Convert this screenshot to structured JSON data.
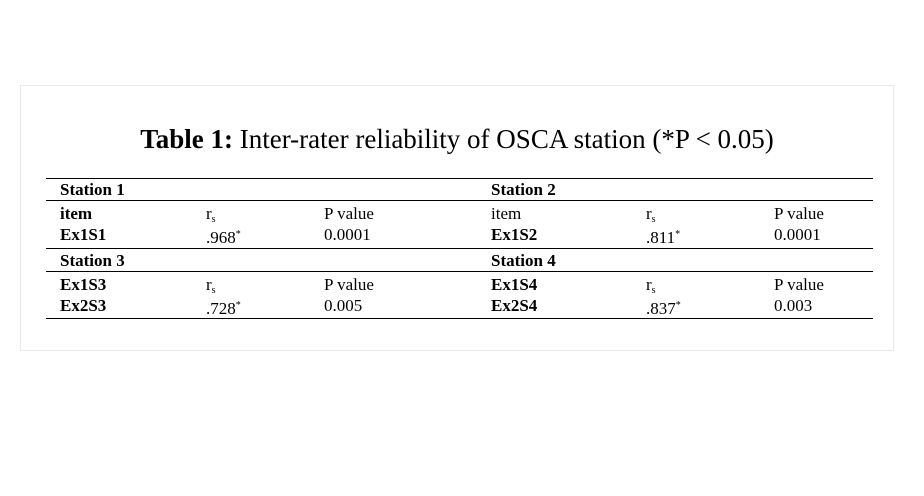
{
  "caption": {
    "label": "Table 1:",
    "text": " Inter-rater reliability of OSCA station (*P < 0.05)"
  },
  "table": {
    "block1": {
      "left_title": "Station 1",
      "right_title": "Station 2",
      "header": {
        "left_item": "item",
        "left_r": "r",
        "left_r_sub": "s",
        "left_p": "P value",
        "right_item": "item",
        "right_r": "r",
        "right_r_sub": "s",
        "right_p": "P value"
      },
      "row": {
        "left_item": "Ex1S1",
        "left_r": ".968",
        "left_r_mark": "*",
        "left_p": "0.0001",
        "right_item": "Ex1S2",
        "right_r": ".811",
        "right_r_mark": "*",
        "right_p": "0.0001"
      }
    },
    "block2": {
      "left_title": "Station 3",
      "right_title": "Station 4",
      "header": {
        "left_item": "Ex1S3",
        "left_r": "r",
        "left_r_sub": "s",
        "left_p": "P value",
        "right_item": "Ex1S4",
        "right_r": "r",
        "right_r_sub": "s",
        "right_p": "P value"
      },
      "row": {
        "left_item": "Ex2S3",
        "left_r": ".728",
        "left_r_mark": "*",
        "left_p": "0.005",
        "right_item": "Ex2S4",
        "right_r": ".837",
        "right_r_mark": "*",
        "right_p": "0.003"
      }
    }
  }
}
